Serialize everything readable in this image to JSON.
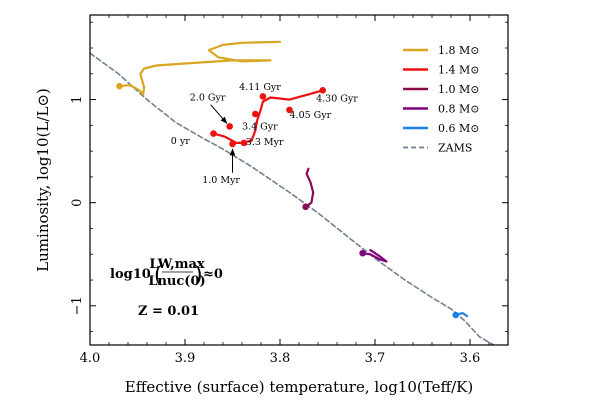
{
  "chart_data": {
    "type": "line",
    "xlabel": "Effective (surface) temperature, log10(Teff/K)",
    "ylabel": "Luminosity, log10(L/L⊙)",
    "x_reversed": true,
    "xlim": [
      4.0,
      3.56
    ],
    "ylim": [
      -1.38,
      1.82
    ],
    "x_ticks": [
      {
        "v": 4.0,
        "label": "4.0"
      },
      {
        "v": 3.9,
        "label": "3.9"
      },
      {
        "v": 3.8,
        "label": "3.8"
      },
      {
        "v": 3.7,
        "label": "3.7"
      },
      {
        "v": 3.6,
        "label": "3.6"
      }
    ],
    "y_ticks": [
      {
        "v": -1,
        "label": "−1"
      },
      {
        "v": 0,
        "label": "0"
      },
      {
        "v": 1,
        "label": "1"
      }
    ],
    "grid": false,
    "legend_position": "top-right",
    "legend": [
      {
        "label": "1.8 M⊙",
        "color": "#daa520",
        "dash": false
      },
      {
        "label": "1.4 M⊙",
        "color": "#ee1111",
        "dash": false
      },
      {
        "label": "1.0 M⊙",
        "color": "#8b0a50",
        "dash": false
      },
      {
        "label": "0.8 M⊙",
        "color": "#800080",
        "dash": false
      },
      {
        "label": "0.6 M⊙",
        "color": "#1e7ee8",
        "dash": false
      },
      {
        "label": "ZAMS",
        "color": "#708090",
        "dash": true
      }
    ],
    "series": [
      {
        "name": "ZAMS",
        "color": "#708090",
        "dash": true,
        "points": [
          [
            4.0,
            1.45
          ],
          [
            3.97,
            1.25
          ],
          [
            3.94,
            1.0
          ],
          [
            3.91,
            0.78
          ],
          [
            3.88,
            0.62
          ],
          [
            3.86,
            0.52
          ],
          [
            3.83,
            0.35
          ],
          [
            3.79,
            0.1
          ],
          [
            3.76,
            -0.1
          ],
          [
            3.73,
            -0.32
          ],
          [
            3.7,
            -0.54
          ],
          [
            3.67,
            -0.74
          ],
          [
            3.64,
            -0.92
          ],
          [
            3.62,
            -1.03
          ],
          [
            3.605,
            -1.15
          ],
          [
            3.59,
            -1.3
          ],
          [
            3.575,
            -1.38
          ]
        ]
      },
      {
        "name": "1.8 M⊙",
        "color": "#daa520",
        "dash": false,
        "points": [
          [
            3.969,
            1.13
          ],
          [
            3.958,
            1.14
          ],
          [
            3.948,
            1.09
          ],
          [
            3.944,
            1.05
          ],
          [
            3.943,
            1.12
          ],
          [
            3.947,
            1.25
          ],
          [
            3.943,
            1.3
          ],
          [
            3.93,
            1.33
          ],
          [
            3.9,
            1.35
          ],
          [
            3.85,
            1.38
          ],
          [
            3.81,
            1.38
          ],
          [
            3.84,
            1.37
          ],
          [
            3.865,
            1.41
          ],
          [
            3.875,
            1.48
          ],
          [
            3.86,
            1.53
          ],
          [
            3.84,
            1.55
          ],
          [
            3.8,
            1.56
          ]
        ]
      },
      {
        "name": "1.4 M⊙",
        "color": "#ee1111",
        "dash": false,
        "points": [
          [
            3.87,
            0.67
          ],
          [
            3.858,
            0.64
          ],
          [
            3.846,
            0.58
          ],
          [
            3.84,
            0.58
          ],
          [
            3.83,
            0.6
          ],
          [
            3.826,
            0.7
          ],
          [
            3.824,
            0.8
          ],
          [
            3.82,
            0.91
          ],
          [
            3.818,
            0.98
          ],
          [
            3.81,
            1.02
          ],
          [
            3.79,
            1.0
          ],
          [
            3.77,
            1.05
          ],
          [
            3.755,
            1.09
          ]
        ]
      },
      {
        "name": "1.0 M⊙",
        "color": "#8b0a50",
        "dash": false,
        "points": [
          [
            3.773,
            -0.04
          ],
          [
            3.767,
            0.0
          ],
          [
            3.765,
            0.1
          ],
          [
            3.768,
            0.2
          ],
          [
            3.772,
            0.28
          ],
          [
            3.77,
            0.33
          ]
        ]
      },
      {
        "name": "0.8 M⊙",
        "color": "#800080",
        "dash": false,
        "points": [
          [
            3.713,
            -0.49
          ],
          [
            3.705,
            -0.5
          ],
          [
            3.695,
            -0.55
          ],
          [
            3.688,
            -0.57
          ],
          [
            3.695,
            -0.52
          ],
          [
            3.705,
            -0.46
          ]
        ]
      },
      {
        "name": "0.6 M⊙",
        "color": "#1e7ee8",
        "dash": false,
        "points": [
          [
            3.615,
            -1.09
          ],
          [
            3.608,
            -1.07
          ],
          [
            3.603,
            -1.1
          ]
        ]
      }
    ],
    "markers": [
      {
        "x": 3.969,
        "y": 1.13,
        "color": "#daa520"
      },
      {
        "x": 3.87,
        "y": 0.67,
        "color": "#ee1111"
      },
      {
        "x": 3.85,
        "y": 0.57,
        "color": "#ee1111"
      },
      {
        "x": 3.838,
        "y": 0.58,
        "color": "#ee1111"
      },
      {
        "x": 3.853,
        "y": 0.74,
        "color": "#ee1111"
      },
      {
        "x": 3.826,
        "y": 0.86,
        "color": "#ee1111"
      },
      {
        "x": 3.818,
        "y": 1.03,
        "color": "#ee1111"
      },
      {
        "x": 3.79,
        "y": 0.9,
        "color": "#ee1111"
      },
      {
        "x": 3.755,
        "y": 1.09,
        "color": "#ee1111"
      },
      {
        "x": 3.773,
        "y": -0.04,
        "color": "#8b0a50"
      },
      {
        "x": 3.713,
        "y": -0.49,
        "color": "#800080"
      },
      {
        "x": 3.615,
        "y": -1.09,
        "color": "#1e7ee8"
      }
    ],
    "annotations": [
      {
        "text": "0 yr",
        "x": 3.895,
        "y": 0.6,
        "anchor": "end"
      },
      {
        "text": "1.0 Myr",
        "x": 3.862,
        "y": 0.22,
        "anchor": "middle"
      },
      {
        "text": "3.3 Myr",
        "x": 3.836,
        "y": 0.59,
        "anchor": "start"
      },
      {
        "text": "2.0 Gyr",
        "x": 3.895,
        "y": 1.02,
        "anchor": "start"
      },
      {
        "text": "3.4 Gyr",
        "x": 3.84,
        "y": 0.74,
        "anchor": "start"
      },
      {
        "text": "4.05 Gyr",
        "x": 3.79,
        "y": 0.85,
        "anchor": "start"
      },
      {
        "text": "4.11 Gyr",
        "x": 3.843,
        "y": 1.12,
        "anchor": "start"
      },
      {
        "text": "4.30 Gyr",
        "x": 3.762,
        "y": 1.01,
        "anchor": "start"
      }
    ],
    "arrows": [
      {
        "from": [
          3.873,
          0.95
        ],
        "to": [
          3.856,
          0.77
        ]
      },
      {
        "from": [
          3.85,
          0.29
        ],
        "to": [
          3.85,
          0.52
        ]
      }
    ]
  },
  "formula": {
    "lhs": "log10",
    "numerator": "LW,max",
    "denominator": "Lnuc(0)",
    "rhs": "≈0"
  },
  "z_label": "Z = 0.01"
}
